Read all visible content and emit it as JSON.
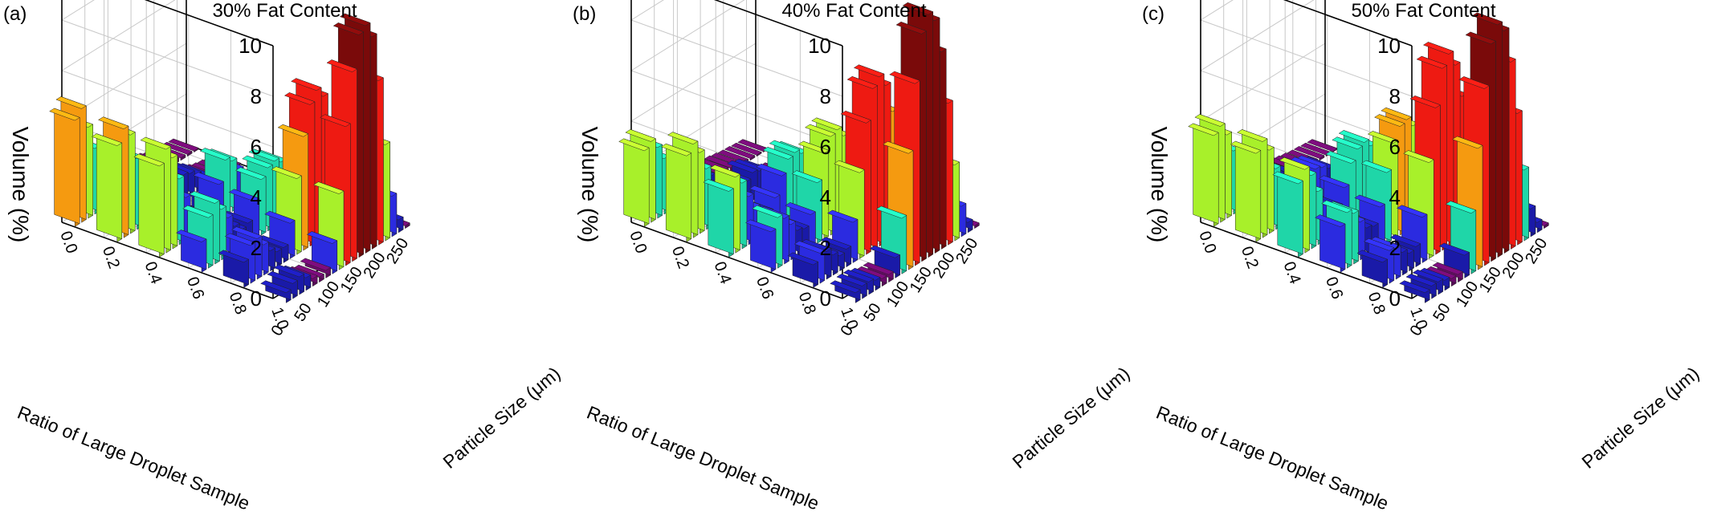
{
  "figure": {
    "panels": [
      {
        "label": "(a)",
        "title": "30% Fat Content"
      },
      {
        "label": "(b)",
        "title": "40% Fat Content"
      },
      {
        "label": "(c)",
        "title": "50% Fat Content"
      }
    ]
  },
  "chart_data": [
    {
      "type": "bar3d",
      "title": "30% Fat Content",
      "xlabel": "Particle Size (μm)",
      "ylabel": "Ratio of Large Droplet Sample",
      "zlabel": "Volume (%)",
      "x_ticks": [
        "0",
        "50",
        "100",
        "150",
        "200",
        "250"
      ],
      "y_ticks": [
        "0.0",
        "0.2",
        "0.4",
        "0.6",
        "0.8",
        "1.0"
      ],
      "z_ticks": [
        "0",
        "2",
        "4",
        "6",
        "8",
        "10"
      ],
      "xlim": [
        0,
        270
      ],
      "ylim": [
        0.0,
        1.0
      ],
      "zlim": [
        0,
        10
      ],
      "grid": true,
      "color_scale": [
        "#6a0a6a",
        "#1a1aa8",
        "#2b2be0",
        "#1fd6a8",
        "#a8f02a",
        "#f59a10",
        "#ee1a12",
        "#7a0a0a"
      ],
      "series": [
        {
          "ratio": "0.0",
          "particle_sizes": [
            0.6,
            0.9,
            1.3,
            1.8,
            2.5,
            3.5,
            5,
            7,
            10,
            14,
            20,
            28,
            40,
            56,
            79,
            112,
            158,
            224,
            260
          ],
          "volumes": [
            4.2,
            4.5,
            3.6,
            2.6,
            1.8,
            1.2,
            0.8,
            0.5,
            0.3,
            0.2,
            0.35,
            0.45,
            0.4,
            0.3,
            0.2,
            0.15,
            0.1,
            0.08,
            0.05
          ]
        },
        {
          "ratio": "0.2",
          "particle_sizes": [
            0.6,
            0.9,
            1.3,
            1.8,
            2.5,
            3.5,
            5,
            7,
            10,
            14,
            20,
            28,
            40,
            56,
            79,
            112,
            158,
            224,
            260
          ],
          "volumes": [
            3.8,
            4.3,
            3.9,
            2.8,
            1.9,
            1.2,
            0.8,
            0.6,
            0.6,
            0.8,
            1.0,
            0.9,
            0.7,
            0.5,
            0.3,
            0.2,
            0.15,
            0.1,
            0.05
          ]
        },
        {
          "ratio": "0.4",
          "particle_sizes": [
            0.6,
            0.9,
            1.3,
            1.8,
            2.5,
            3.5,
            5,
            7,
            10,
            14,
            20,
            28,
            40,
            56,
            79,
            112,
            158,
            224,
            260
          ],
          "volumes": [
            3.6,
            4.1,
            3.6,
            2.6,
            1.7,
            1.0,
            0.6,
            0.5,
            0.8,
            1.4,
            2.2,
            2.0,
            1.5,
            1.0,
            0.6,
            0.3,
            0.15,
            0.1,
            0.05
          ]
        },
        {
          "ratio": "0.6",
          "particle_sizes": [
            0.6,
            0.9,
            1.3,
            1.8,
            2.5,
            3.5,
            5,
            7,
            10,
            14,
            20,
            28,
            40,
            56,
            79,
            112,
            158,
            224,
            260
          ],
          "volumes": [
            1.2,
            2.0,
            2.4,
            2.0,
            1.5,
            1.0,
            0.7,
            0.8,
            1.5,
            2.2,
            2.5,
            2.6,
            2.4,
            1.8,
            1.0,
            0.5,
            0.2,
            0.1,
            0.05
          ]
        },
        {
          "ratio": "0.8",
          "particle_sizes": [
            0.6,
            0.9,
            1.3,
            1.8,
            2.5,
            3.5,
            5,
            7,
            10,
            14,
            20,
            28,
            40,
            56,
            79,
            112,
            158,
            224,
            260
          ],
          "volumes": [
            1.0,
            1.5,
            1.6,
            1.2,
            0.8,
            0.6,
            0.6,
            1.4,
            3.0,
            4.5,
            5.6,
            6.0,
            5.6,
            4.2,
            2.8,
            1.2,
            0.4,
            0.15,
            0.05
          ]
        },
        {
          "ratio": "1.0",
          "particle_sizes": [
            0.6,
            0.9,
            1.3,
            1.8,
            2.5,
            3.5,
            5,
            7,
            10,
            14,
            20,
            28,
            40,
            56,
            79,
            112,
            158,
            224,
            260
          ],
          "volumes": [
            0.4,
            0.6,
            0.7,
            0.5,
            0.3,
            0.2,
            0.3,
            1.2,
            3.0,
            5.5,
            7.5,
            8.8,
            9.0,
            8.4,
            6.5,
            3.8,
            1.6,
            0.5,
            0.1
          ]
        }
      ]
    },
    {
      "type": "bar3d",
      "title": "40% Fat Content",
      "xlabel": "Particle Size (μm)",
      "ylabel": "Ratio of Large Droplet Sample",
      "zlabel": "Volume (%)",
      "x_ticks": [
        "0",
        "50",
        "100",
        "150",
        "200",
        "250"
      ],
      "y_ticks": [
        "0.0",
        "0.2",
        "0.4",
        "0.6",
        "0.8",
        "1.0"
      ],
      "z_ticks": [
        "0",
        "2",
        "4",
        "6",
        "8",
        "10"
      ],
      "xlim": [
        0,
        270
      ],
      "ylim": [
        0.0,
        1.0
      ],
      "zlim": [
        0,
        10
      ],
      "grid": true,
      "color_scale": [
        "#6a0a6a",
        "#1a1aa8",
        "#2b2be0",
        "#1fd6a8",
        "#a8f02a",
        "#f59a10",
        "#ee1a12",
        "#7a0a0a"
      ],
      "series": [
        {
          "ratio": "0.0",
          "particle_sizes": [
            0.6,
            0.9,
            1.3,
            1.8,
            2.5,
            3.5,
            5,
            7,
            10,
            14,
            20,
            28,
            40,
            56,
            79,
            112,
            158,
            224,
            260
          ],
          "volumes": [
            3.0,
            3.2,
            2.8,
            2.2,
            1.6,
            1.1,
            0.8,
            0.6,
            0.5,
            0.4,
            0.35,
            0.3,
            0.25,
            0.2,
            0.15,
            0.1,
            0.08,
            0.05,
            0.03
          ]
        },
        {
          "ratio": "0.2",
          "particle_sizes": [
            0.6,
            0.9,
            1.3,
            1.8,
            2.5,
            3.5,
            5,
            7,
            10,
            14,
            20,
            28,
            40,
            56,
            79,
            112,
            158,
            224,
            260
          ],
          "volumes": [
            3.4,
            3.7,
            3.2,
            2.4,
            1.6,
            1.0,
            0.7,
            0.6,
            0.7,
            0.9,
            1.1,
            1.0,
            0.8,
            0.5,
            0.3,
            0.2,
            0.1,
            0.06,
            0.03
          ]
        },
        {
          "ratio": "0.4",
          "particle_sizes": [
            0.6,
            0.9,
            1.3,
            1.8,
            2.5,
            3.5,
            5,
            7,
            10,
            14,
            20,
            28,
            40,
            56,
            79,
            112,
            158,
            224,
            260
          ],
          "volumes": [
            2.6,
            3.0,
            2.6,
            1.9,
            1.3,
            0.9,
            0.8,
            1.2,
            1.9,
            2.4,
            2.5,
            2.3,
            1.8,
            1.2,
            0.7,
            0.3,
            0.15,
            0.08,
            0.04
          ]
        },
        {
          "ratio": "0.6",
          "particle_sizes": [
            0.6,
            0.9,
            1.3,
            1.8,
            2.5,
            3.5,
            5,
            7,
            10,
            14,
            20,
            28,
            40,
            56,
            79,
            112,
            158,
            224,
            260
          ],
          "volumes": [
            1.6,
            2.0,
            1.8,
            1.4,
            1.0,
            0.9,
            1.3,
            2.4,
            3.4,
            3.9,
            4.0,
            3.6,
            2.8,
            1.8,
            1.0,
            0.5,
            0.2,
            0.1,
            0.05
          ]
        },
        {
          "ratio": "0.8",
          "particle_sizes": [
            0.6,
            0.9,
            1.3,
            1.8,
            2.5,
            3.5,
            5,
            7,
            10,
            14,
            20,
            28,
            40,
            56,
            79,
            112,
            158,
            224,
            260
          ],
          "volumes": [
            0.9,
            1.2,
            1.1,
            0.8,
            0.6,
            0.7,
            1.6,
            3.4,
            5.2,
            6.4,
            6.7,
            6.2,
            5.0,
            3.6,
            2.2,
            1.0,
            0.4,
            0.15,
            0.05
          ]
        },
        {
          "ratio": "1.0",
          "particle_sizes": [
            0.6,
            0.9,
            1.3,
            1.8,
            2.5,
            3.5,
            5,
            7,
            10,
            14,
            20,
            28,
            40,
            56,
            79,
            112,
            158,
            224,
            260
          ],
          "volumes": [
            0.4,
            0.5,
            0.5,
            0.4,
            0.3,
            0.3,
            0.8,
            2.2,
            4.6,
            7.2,
            9.0,
            9.6,
            9.2,
            7.8,
            5.6,
            3.0,
            1.2,
            0.4,
            0.1
          ]
        }
      ]
    },
    {
      "type": "bar3d",
      "title": "50% Fat Content",
      "xlabel": "Particle Size (μm)",
      "ylabel": "Ratio of Large Droplet Sample",
      "zlabel": "Volume (%)",
      "x_ticks": [
        "0",
        "50",
        "100",
        "150",
        "200",
        "250"
      ],
      "y_ticks": [
        "0.0",
        "0.2",
        "0.4",
        "0.6",
        "0.8",
        "1.0"
      ],
      "z_ticks": [
        "0",
        "2",
        "4",
        "6",
        "8",
        "10"
      ],
      "xlim": [
        0,
        270
      ],
      "ylim": [
        0.0,
        1.0
      ],
      "zlim": [
        0,
        10
      ],
      "grid": true,
      "color_scale": [
        "#6a0a6a",
        "#1a1aa8",
        "#2b2be0",
        "#1fd6a8",
        "#a8f02a",
        "#f59a10",
        "#ee1a12",
        "#7a0a0a"
      ],
      "series": [
        {
          "ratio": "0.0",
          "particle_sizes": [
            0.6,
            0.9,
            1.3,
            1.8,
            2.5,
            3.5,
            5,
            7,
            10,
            14,
            20,
            28,
            40,
            56,
            79,
            112,
            158,
            224,
            260
          ],
          "volumes": [
            3.6,
            3.8,
            3.3,
            2.5,
            1.8,
            1.2,
            0.8,
            0.6,
            0.5,
            0.45,
            0.4,
            0.35,
            0.3,
            0.2,
            0.15,
            0.1,
            0.08,
            0.05,
            0.03
          ]
        },
        {
          "ratio": "0.2",
          "particle_sizes": [
            0.6,
            0.9,
            1.3,
            1.8,
            2.5,
            3.5,
            5,
            7,
            10,
            14,
            20,
            28,
            40,
            56,
            79,
            112,
            158,
            224,
            260
          ],
          "volumes": [
            3.5,
            3.8,
            3.3,
            2.4,
            1.6,
            1.0,
            0.8,
            0.9,
            1.2,
            1.4,
            1.3,
            1.1,
            0.8,
            0.5,
            0.3,
            0.2,
            0.1,
            0.06,
            0.03
          ]
        },
        {
          "ratio": "0.4",
          "particle_sizes": [
            0.6,
            0.9,
            1.3,
            1.8,
            2.5,
            3.5,
            5,
            7,
            10,
            14,
            20,
            28,
            40,
            56,
            79,
            112,
            158,
            224,
            260
          ],
          "volumes": [
            2.9,
            3.3,
            2.9,
            2.1,
            1.4,
            1.0,
            1.0,
            1.6,
            2.4,
            2.8,
            2.9,
            2.6,
            2.0,
            1.3,
            0.8,
            0.4,
            0.15,
            0.08,
            0.04
          ]
        },
        {
          "ratio": "0.6",
          "particle_sizes": [
            0.6,
            0.9,
            1.3,
            1.8,
            2.5,
            3.5,
            5,
            7,
            10,
            14,
            20,
            28,
            40,
            56,
            79,
            112,
            158,
            224,
            260
          ],
          "volumes": [
            1.8,
            2.2,
            2.0,
            1.5,
            1.1,
            1.0,
            1.6,
            2.8,
            3.8,
            4.3,
            4.4,
            4.0,
            3.1,
            2.0,
            1.1,
            0.5,
            0.2,
            0.1,
            0.05
          ]
        },
        {
          "ratio": "0.8",
          "particle_sizes": [
            0.6,
            0.9,
            1.3,
            1.8,
            2.5,
            3.5,
            5,
            7,
            10,
            14,
            20,
            28,
            40,
            56,
            79,
            112,
            158,
            224,
            260
          ],
          "volumes": [
            1.0,
            1.3,
            1.2,
            0.9,
            0.7,
            0.8,
            1.8,
            3.8,
            5.8,
            7.2,
            7.6,
            7.0,
            5.6,
            4.0,
            2.4,
            1.1,
            0.4,
            0.15,
            0.05
          ]
        },
        {
          "ratio": "1.0",
          "particle_sizes": [
            0.6,
            0.9,
            1.3,
            1.8,
            2.5,
            3.5,
            5,
            7,
            10,
            14,
            20,
            28,
            40,
            56,
            79,
            112,
            158,
            224,
            260
          ],
          "volumes": [
            0.4,
            0.5,
            0.5,
            0.4,
            0.3,
            0.3,
            0.9,
            2.4,
            4.8,
            7.0,
            8.6,
            9.2,
            8.8,
            7.4,
            5.2,
            2.8,
            1.1,
            0.4,
            0.1
          ]
        }
      ]
    }
  ]
}
